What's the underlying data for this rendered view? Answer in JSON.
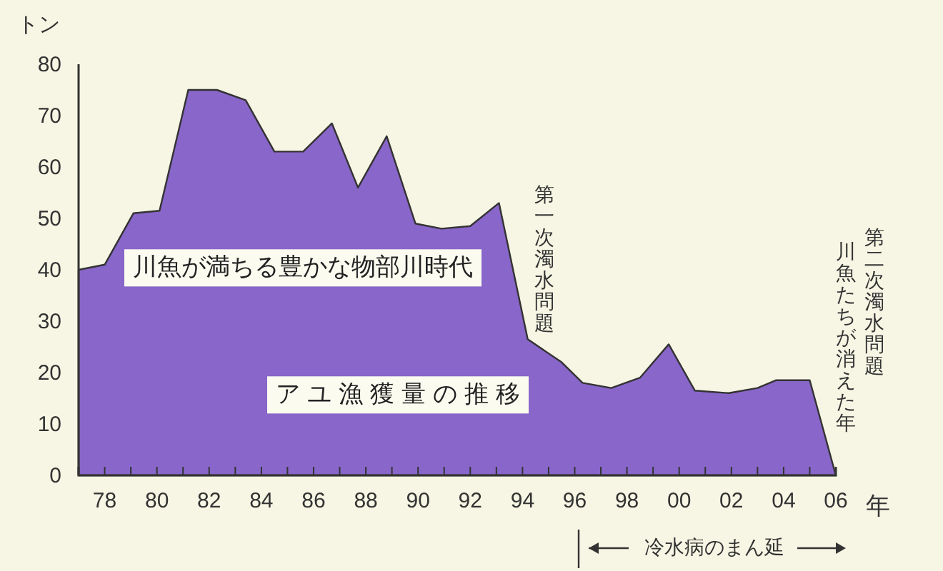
{
  "chart_data": {
    "type": "area",
    "ylabel": "トン",
    "xlabel": "年",
    "color": "#8966c9",
    "x": [
      1977.0,
      1978.0,
      1979.1,
      1980.1,
      1981.2,
      1982.3,
      1983.4,
      1984.5,
      1985.6,
      1986.7,
      1987.7,
      1988.8,
      1989.9,
      1990.9,
      1992.0,
      1993.1,
      1994.2,
      1995.5,
      1996.3,
      1997.4,
      1998.5,
      1999.6,
      2000.6,
      2001.9,
      2003.0,
      2003.7,
      2005.0,
      2006.0
    ],
    "values": [
      40,
      41,
      51,
      51.5,
      75,
      75,
      73,
      63,
      63,
      68.5,
      56,
      66,
      49,
      48,
      48.5,
      53,
      26.5,
      22,
      18,
      17,
      19,
      25.5,
      16.5,
      16,
      17,
      18.5,
      18.5,
      0
    ],
    "xlim": [
      1977,
      2006
    ],
    "xticks": [
      {
        "value": 1978,
        "label": "78"
      },
      {
        "value": 1979,
        "label": null
      },
      {
        "value": 1980,
        "label": "80"
      },
      {
        "value": 1981,
        "label": null
      },
      {
        "value": 1982,
        "label": "82"
      },
      {
        "value": 1983,
        "label": null
      },
      {
        "value": 1984,
        "label": "84"
      },
      {
        "value": 1985,
        "label": null
      },
      {
        "value": 1986,
        "label": "86"
      },
      {
        "value": 1987,
        "label": null
      },
      {
        "value": 1988,
        "label": "88"
      },
      {
        "value": 1989,
        "label": null
      },
      {
        "value": 1990,
        "label": "90"
      },
      {
        "value": 1991,
        "label": null
      },
      {
        "value": 1992,
        "label": "92"
      },
      {
        "value": 1993,
        "label": null
      },
      {
        "value": 1994,
        "label": "94"
      },
      {
        "value": 1995,
        "label": null
      },
      {
        "value": 1996,
        "label": "96"
      },
      {
        "value": 1997,
        "label": null
      },
      {
        "value": 1998,
        "label": "98"
      },
      {
        "value": 1999,
        "label": null
      },
      {
        "value": 2000,
        "label": "00"
      },
      {
        "value": 2001,
        "label": null
      },
      {
        "value": 2002,
        "label": "02"
      },
      {
        "value": 2003,
        "label": null
      },
      {
        "value": 2004,
        "label": "04"
      },
      {
        "value": 2005,
        "label": null
      },
      {
        "value": 2006,
        "label": "06"
      }
    ],
    "ylim": [
      0,
      80
    ],
    "yticks": [
      0,
      10,
      20,
      30,
      40,
      50,
      60,
      70,
      80
    ],
    "grid": false,
    "annotations": [
      "川魚が満ちる豊かな物部川時代",
      "アユ漁獲量の推移",
      "第一次濁水問題",
      "第二次濁水問題",
      "川魚たちが消えた年",
      "冷水病のまん延"
    ]
  }
}
